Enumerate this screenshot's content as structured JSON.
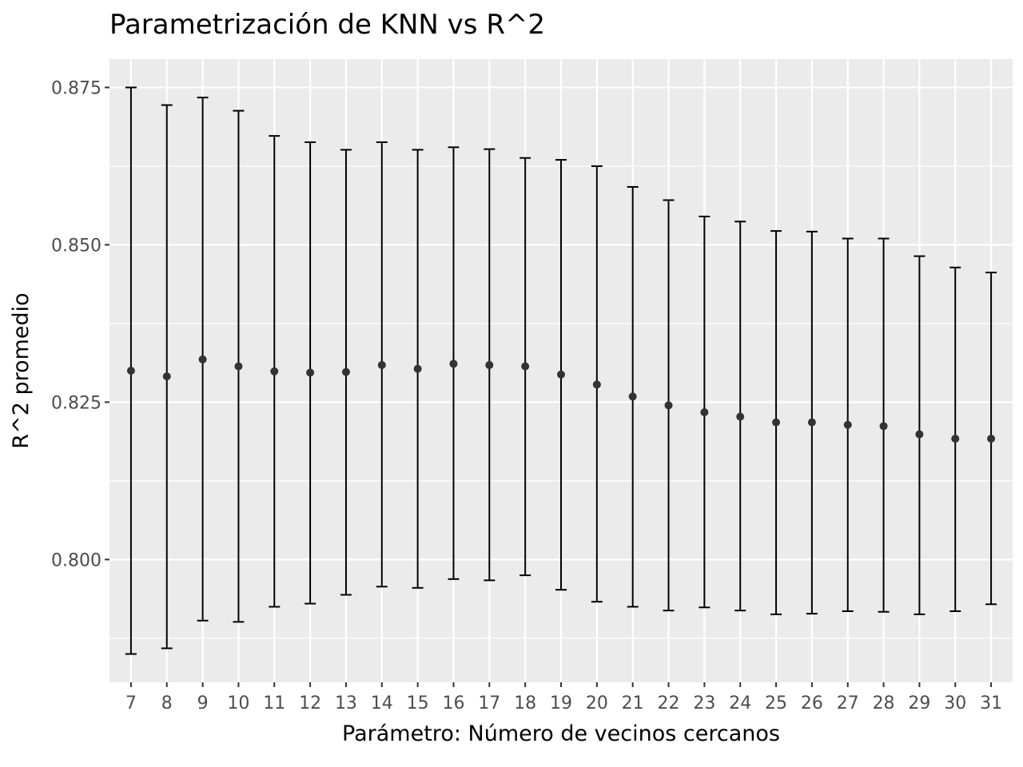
{
  "chart_data": {
    "type": "scatter",
    "title": "Parametrización de KNN vs R^2",
    "xlabel": "Parámetro: Número de vecinos cercanos",
    "ylabel": "R^2 promedio",
    "x": [
      7,
      8,
      9,
      10,
      11,
      12,
      13,
      14,
      15,
      16,
      17,
      18,
      19,
      20,
      21,
      22,
      23,
      24,
      25,
      26,
      27,
      28,
      29,
      30,
      31
    ],
    "series": [
      {
        "values": [
          0.83,
          0.8291,
          0.8318,
          0.8307,
          0.8299,
          0.8297,
          0.8298,
          0.8309,
          0.8303,
          0.8311,
          0.8309,
          0.8307,
          0.8294,
          0.8278,
          0.8259,
          0.8245,
          0.8234,
          0.8227,
          0.8218,
          0.8218,
          0.8214,
          0.8212,
          0.8199,
          0.8192,
          0.8192
        ],
        "ymin": [
          0.785,
          0.7859,
          0.7903,
          0.7901,
          0.7925,
          0.793,
          0.7944,
          0.7957,
          0.7955,
          0.7969,
          0.7967,
          0.7975,
          0.7952,
          0.7933,
          0.7925,
          0.7919,
          0.7924,
          0.7919,
          0.7913,
          0.7914,
          0.7918,
          0.7917,
          0.7913,
          0.7918,
          0.7929
        ],
        "ymax": [
          0.875,
          0.8722,
          0.8734,
          0.8713,
          0.8673,
          0.8663,
          0.8651,
          0.8663,
          0.8651,
          0.8655,
          0.8652,
          0.8638,
          0.8635,
          0.8625,
          0.8592,
          0.8571,
          0.8545,
          0.8537,
          0.8522,
          0.8521,
          0.851,
          0.851,
          0.8482,
          0.8464,
          0.8456
        ]
      }
    ],
    "xlim": [
      6.4,
      31.6
    ],
    "ylim": [
      0.7805,
      0.8795
    ],
    "y_ticks": [
      0.8,
      0.825,
      0.85,
      0.875
    ],
    "y_tick_labels": [
      "0.800",
      "0.825",
      "0.850",
      "0.875"
    ],
    "grid": true,
    "colors": {
      "panel": "#ebebeb",
      "grid": "#ffffff",
      "marks": "#000000",
      "points": "#333333",
      "tick_text": "#4d4d4d"
    }
  }
}
